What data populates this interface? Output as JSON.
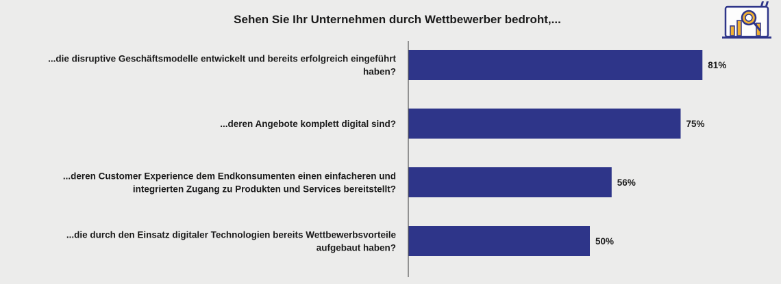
{
  "chart_data": {
    "type": "bar",
    "orientation": "horizontal",
    "title": "Sehen Sie Ihr Unternehmen durch Wettbewerber bedroht,...",
    "categories": [
      [
        "...die disruptive Geschäftsmodelle entwickelt und bereits erfolgreich eingeführt",
        "haben?"
      ],
      [
        "...deren Angebote komplett digital sind?"
      ],
      [
        "...deren Customer Experience dem Endkonsumenten einen einfacheren und",
        "integrierten Zugang zu Produkten und Services bereitstellt?"
      ],
      [
        "...die durch den Einsatz digitaler Technologien bereits Wettbewerbsvorteile",
        "aufgebaut haben?"
      ]
    ],
    "values": [
      81,
      75,
      56,
      50
    ],
    "value_labels": [
      "81%",
      "75%",
      "56%",
      "50%"
    ],
    "unit": "%",
    "xlim": [
      0,
      100
    ],
    "grid": false,
    "colors": {
      "bar": "#2e3589",
      "background": "#ececeb",
      "text": "#1a1a1a"
    }
  },
  "logo": {
    "icon": "magnifier-chart-icon",
    "colors": {
      "outline": "#2e3589",
      "fill": "#f2b233"
    }
  }
}
